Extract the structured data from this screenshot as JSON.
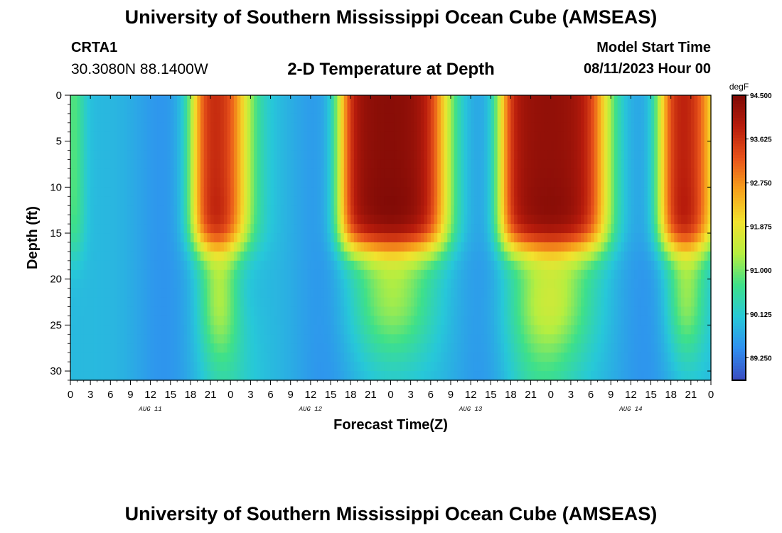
{
  "header": {
    "title": "University of Southern Mississippi Ocean Cube (AMSEAS)",
    "station": "CRTA1",
    "coords": "30.3080N  88.1400W",
    "plot_title": "2-D Temperature at Depth",
    "model_start_label": "Model Start Time",
    "model_start_value": "08/11/2023 Hour 00"
  },
  "footer": {
    "title": "University of Southern Mississippi Ocean Cube (AMSEAS)"
  },
  "colors": {
    "colormap": [
      "#3a4cc0",
      "#2f8ff0",
      "#27c8d8",
      "#3ee08a",
      "#b6ee40",
      "#f2e22e",
      "#f7a21c",
      "#e8531a",
      "#b81c0c",
      "#7e0a06"
    ]
  },
  "chart_data": {
    "type": "heatmap",
    "xlabel": "Forecast Time(Z)",
    "ylabel": "Depth (ft)",
    "x_unit": "hours since model start",
    "xlim": [
      0,
      96
    ],
    "ylim": [
      0,
      31
    ],
    "x_tick_labels": [
      "0",
      "3",
      "6",
      "9",
      "12",
      "15",
      "18",
      "21",
      "0",
      "3",
      "6",
      "9",
      "12",
      "15",
      "18",
      "21",
      "0",
      "3",
      "6",
      "9",
      "12",
      "15",
      "18",
      "21",
      "0",
      "3",
      "6",
      "9",
      "12",
      "15",
      "18",
      "21",
      "0"
    ],
    "y_ticks": [
      0,
      5,
      10,
      15,
      20,
      25,
      30
    ],
    "day_labels": [
      {
        "hour": 12,
        "label": "AUG 11"
      },
      {
        "hour": 36,
        "label": "AUG 12"
      },
      {
        "hour": 60,
        "label": "AUG 13"
      },
      {
        "hour": 84,
        "label": "AUG 14"
      }
    ],
    "colorbar": {
      "unit": "degF",
      "min": 88.8,
      "max": 94.5,
      "tick_labels": [
        "94.500",
        "93.625",
        "92.750",
        "91.875",
        "91.000",
        "90.125",
        "89.250"
      ]
    },
    "warm_events": [
      {
        "start_hour": 18.5,
        "end_hour": 26,
        "peak_degF": 94.1
      },
      {
        "start_hour": 40.5,
        "end_hour": 56,
        "peak_degF": 94.5
      },
      {
        "start_hour": 64.5,
        "end_hour": 80,
        "peak_degF": 94.4
      },
      {
        "start_hour": 88.5,
        "end_hour": 96,
        "peak_degF": 94.3
      }
    ],
    "min_band_hours": [
      14,
      38,
      62,
      86
    ],
    "summary": "Surface-layer temperature (0-17 ft) peaks near 94 degF each afternoon (~18Z-06Z), cooling to ~89.2 degF around 12-15Z; deeper water (20-31 ft) stays near 89.5-91 degF."
  }
}
